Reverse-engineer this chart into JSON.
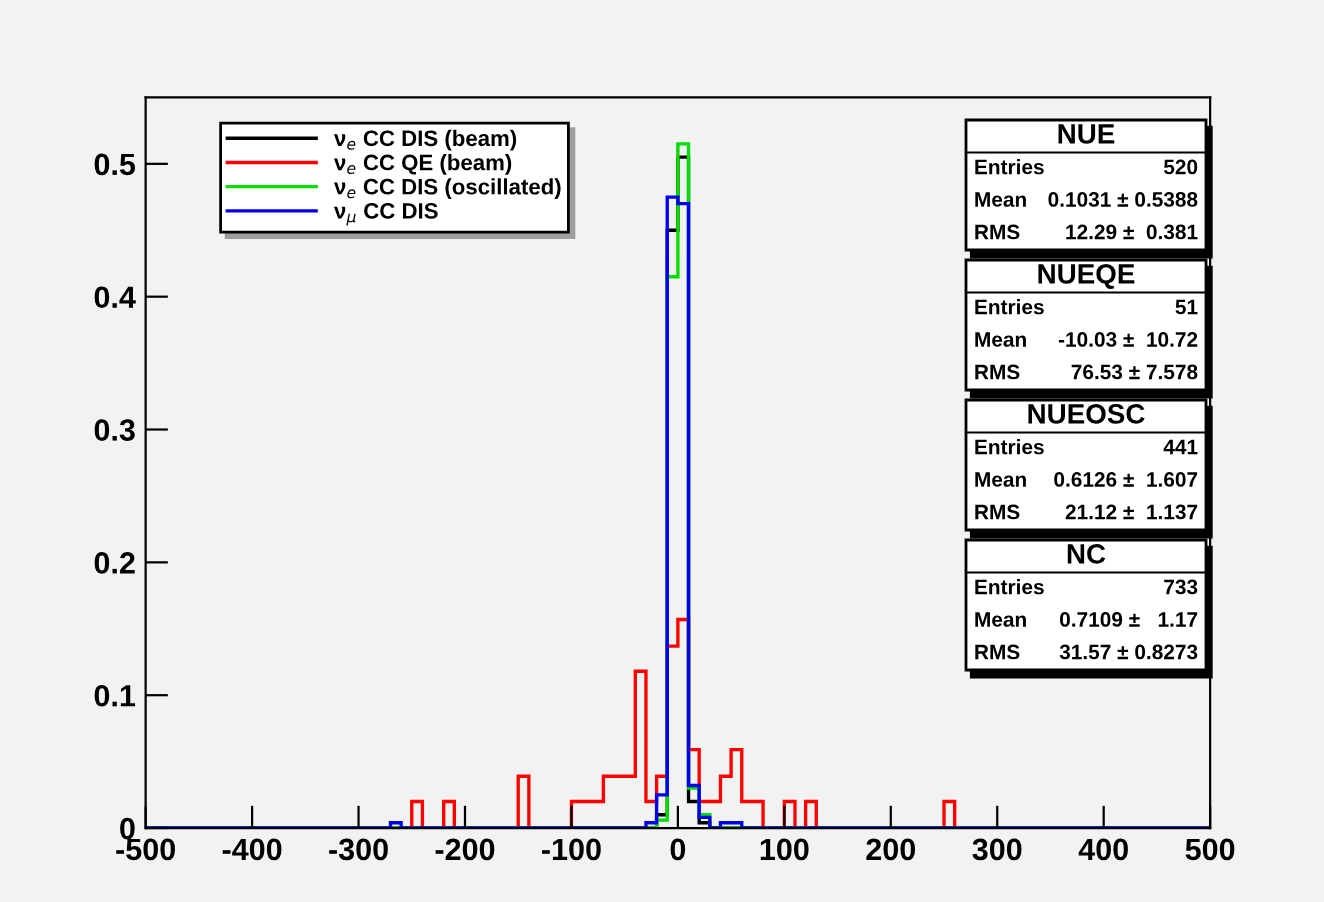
{
  "chart_data": {
    "type": "histogram",
    "bins": [
      -500,
      -490,
      -480,
      -470,
      -460,
      -450,
      -440,
      -430,
      -420,
      -410,
      -400,
      -390,
      -380,
      -370,
      -360,
      -350,
      -340,
      -330,
      -320,
      -310,
      -300,
      -290,
      -280,
      -270,
      -260,
      -250,
      -240,
      -230,
      -220,
      -210,
      -200,
      -190,
      -180,
      -170,
      -160,
      -150,
      -140,
      -130,
      -120,
      -110,
      -100,
      -90,
      -80,
      -70,
      -60,
      -50,
      -40,
      -30,
      -20,
      -10,
      0,
      10,
      20,
      30,
      40,
      50,
      60,
      70,
      80,
      90,
      100,
      110,
      120,
      130,
      140,
      150,
      160,
      170,
      180,
      190,
      200,
      210,
      220,
      230,
      240,
      250,
      260,
      270,
      280,
      290,
      300,
      310,
      320,
      330,
      340,
      350,
      360,
      370,
      380,
      390,
      400,
      410,
      420,
      430,
      440,
      450,
      460,
      470,
      480,
      490,
      500
    ],
    "series": [
      {
        "name": "ν$_{e}$ CC DIS (beam)",
        "color": "#000000",
        "values": [
          0,
          0,
          0,
          0,
          0,
          0,
          0,
          0,
          0,
          0,
          0,
          0,
          0,
          0,
          0,
          0,
          0,
          0,
          0,
          0,
          0,
          0,
          0,
          0,
          0,
          0,
          0,
          0,
          0,
          0,
          0,
          0,
          0,
          0,
          0,
          0,
          0,
          0,
          0,
          0,
          0,
          0,
          0,
          0,
          0,
          0,
          0,
          0,
          0.01,
          0.45,
          0.505,
          0.02,
          0.004,
          0,
          0,
          0,
          0,
          0,
          0,
          0,
          0,
          0,
          0,
          0,
          0,
          0,
          0,
          0,
          0,
          0,
          0,
          0,
          0,
          0,
          0,
          0,
          0,
          0,
          0,
          0,
          0,
          0,
          0,
          0,
          0,
          0,
          0,
          0,
          0,
          0,
          0,
          0,
          0,
          0,
          0,
          0,
          0,
          0,
          0,
          0
        ]
      },
      {
        "name": "ν$_{e}$ CC QE (beam)",
        "color": "#ff0000",
        "values": [
          0,
          0,
          0,
          0,
          0,
          0,
          0,
          0,
          0,
          0,
          0,
          0,
          0,
          0,
          0,
          0,
          0,
          0,
          0,
          0,
          0,
          0,
          0,
          0,
          0,
          0.02,
          0,
          0,
          0.02,
          0,
          0,
          0,
          0,
          0,
          0,
          0.039,
          0,
          0,
          0,
          0,
          0.02,
          0.02,
          0.02,
          0.039,
          0.039,
          0.039,
          0.118,
          0.02,
          0.039,
          0.137,
          0.157,
          0.059,
          0.02,
          0.02,
          0.039,
          0.059,
          0.02,
          0.02,
          0,
          0,
          0.02,
          0,
          0.02,
          0,
          0,
          0,
          0,
          0,
          0,
          0,
          0,
          0,
          0,
          0,
          0,
          0.02,
          0,
          0,
          0,
          0,
          0,
          0,
          0,
          0,
          0,
          0,
          0,
          0,
          0,
          0,
          0,
          0,
          0,
          0,
          0,
          0,
          0,
          0,
          0,
          0
        ]
      },
      {
        "name": "ν$_{e}$ CC DIS (oscillated)",
        "color": "#00dd00",
        "values": [
          0,
          0,
          0,
          0,
          0,
          0,
          0,
          0,
          0,
          0,
          0,
          0,
          0,
          0,
          0,
          0,
          0,
          0,
          0,
          0,
          0,
          0,
          0,
          0,
          0,
          0,
          0,
          0,
          0,
          0,
          0,
          0,
          0,
          0,
          0,
          0,
          0,
          0,
          0,
          0,
          0,
          0,
          0,
          0,
          0,
          0,
          0,
          0,
          0.006,
          0.415,
          0.515,
          0.03,
          0.01,
          0,
          0,
          0,
          0,
          0,
          0,
          0,
          0,
          0,
          0,
          0,
          0,
          0,
          0,
          0,
          0,
          0,
          0,
          0,
          0,
          0,
          0,
          0,
          0,
          0,
          0,
          0,
          0,
          0,
          0,
          0,
          0,
          0,
          0,
          0,
          0,
          0,
          0,
          0,
          0,
          0,
          0,
          0,
          0,
          0,
          0,
          0
        ]
      },
      {
        "name": "ν$_{μ}$ CC DIS",
        "color": "#0000ee",
        "values": [
          0,
          0,
          0,
          0,
          0,
          0,
          0,
          0,
          0,
          0,
          0,
          0,
          0,
          0,
          0,
          0,
          0,
          0,
          0,
          0,
          0,
          0,
          0,
          0.004,
          0,
          0,
          0,
          0,
          0,
          0,
          0,
          0,
          0,
          0,
          0,
          0,
          0,
          0,
          0,
          0,
          0,
          0,
          0,
          0,
          0,
          0,
          0,
          0.004,
          0.025,
          0.475,
          0.47,
          0.032,
          0.008,
          0,
          0.004,
          0.004,
          0,
          0,
          0,
          0,
          0,
          0,
          0,
          0,
          0,
          0,
          0,
          0,
          0,
          0,
          0,
          0,
          0,
          0,
          0,
          0,
          0,
          0,
          0,
          0,
          0,
          0,
          0,
          0,
          0,
          0,
          0,
          0,
          0,
          0,
          0,
          0,
          0,
          0,
          0,
          0,
          0,
          0,
          0,
          0
        ]
      }
    ],
    "xlim": [
      -500,
      500
    ],
    "xticks": [
      -500,
      -400,
      -300,
      -200,
      -100,
      0,
      100,
      200,
      300,
      400,
      500
    ],
    "ylim": [
      0,
      0.55
    ],
    "yticks": [
      0,
      0.1,
      0.2,
      0.3,
      0.4,
      0.5
    ],
    "legend": "top left",
    "grid": false,
    "annotations": [
      "NUE\nEntries\t520\nMean\t0.1031 ± 0.5388\nRMS\t12.29 ±  0.381",
      "NUEQE\nEntries\t51\nMean\t-10.03 ±  10.72\nRMS\t76.53 ± 7.578",
      "NUEOSC\nEntries\t441\nMean\t0.6126 ±  1.607\nRMS\t21.12 ±  1.137",
      "NC\nEntries\t733\nMean\t0.7109 ±   1.17\nRMS\t31.57 ± 0.8273"
    ]
  }
}
